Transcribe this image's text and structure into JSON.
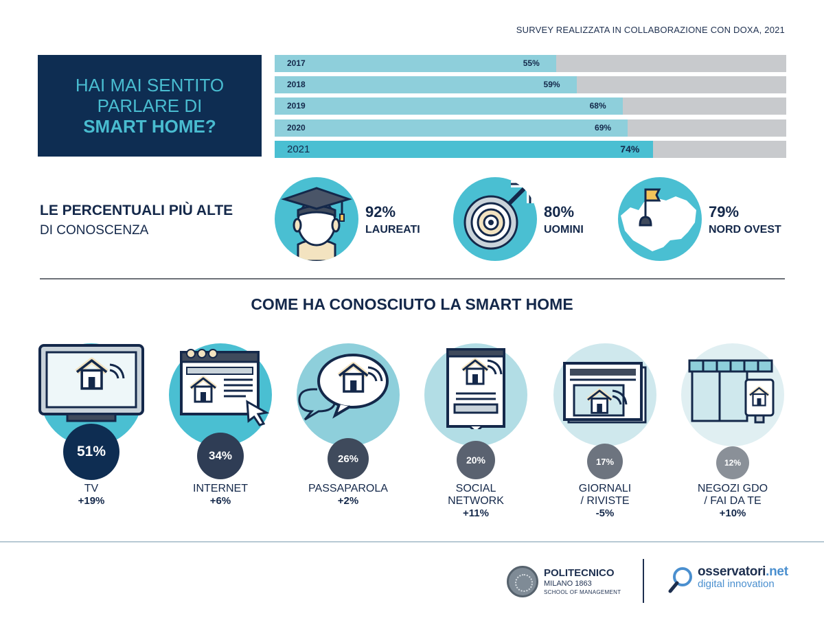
{
  "survey_note": "SURVEY REALIZZATA IN COLLABORAZIONE CON DOXA, 2021",
  "question": {
    "line1": "HAI MAI SENTITO",
    "line2": "PARLARE DI",
    "line3": "SMART HOME?"
  },
  "colors": {
    "navy": "#0e2d52",
    "teal": "#4abfd2",
    "light_teal": "#8ecfdb",
    "grey": "#c8cacd"
  },
  "chart_data": [
    {
      "type": "bar",
      "orientation": "horizontal",
      "title": "HAI MAI SENTITO PARLARE DI SMART HOME?",
      "categories": [
        "2017",
        "2018",
        "2019",
        "2020",
        "2021"
      ],
      "values": [
        55,
        59,
        68,
        69,
        74
      ],
      "value_labels": [
        "55%",
        "59%",
        "68%",
        "69%",
        "74%"
      ],
      "xlim": [
        0,
        100
      ],
      "highlight": "2021"
    },
    {
      "type": "table",
      "title": "COME HA CONOSCIUTO LA SMART HOME",
      "channels": [
        {
          "label_lines": [
            "TV"
          ],
          "value": 51,
          "value_label": "51%",
          "delta": "+19%",
          "icon": "tv-icon"
        },
        {
          "label_lines": [
            "INTERNET"
          ],
          "value": 34,
          "value_label": "34%",
          "delta": "+6%",
          "icon": "browser-icon"
        },
        {
          "label_lines": [
            "PASSAPAROLA"
          ],
          "value": 26,
          "value_label": "26%",
          "delta": "+2%",
          "icon": "speech-bubble-icon"
        },
        {
          "label_lines": [
            "SOCIAL",
            "NETWORK"
          ],
          "value": 20,
          "value_label": "20%",
          "delta": "+11%",
          "icon": "smartphone-icon"
        },
        {
          "label_lines": [
            "GIORNALI",
            "/ RIVISTE"
          ],
          "value": 17,
          "value_label": "17%",
          "delta": "-5%",
          "icon": "newspaper-icon"
        },
        {
          "label_lines": [
            "NEGOZI GDO",
            "/ FAI DA TE"
          ],
          "value": 12,
          "value_label": "12%",
          "delta": "+10%",
          "icon": "store-icon"
        }
      ]
    }
  ],
  "highest": {
    "title_line1": "LE PERCENTUALI PIÙ ALTE",
    "title_line2": "DI CONOSCENZA",
    "stats": [
      {
        "value": "92%",
        "label": "LAUREATI",
        "icon": "graduate-icon"
      },
      {
        "value": "80%",
        "label": "UOMINI",
        "icon": "male-symbol-icon"
      },
      {
        "value": "79%",
        "label": "NORD OVEST",
        "icon": "map-flag-icon"
      }
    ]
  },
  "footer": {
    "polimi": {
      "name": "POLITECNICO",
      "sub": "MILANO 1863",
      "school": "SCHOOL OF MANAGEMENT"
    },
    "osservatori": {
      "name_main": "osservatori",
      "name_suffix": ".net",
      "sub": "digital innovation"
    }
  }
}
